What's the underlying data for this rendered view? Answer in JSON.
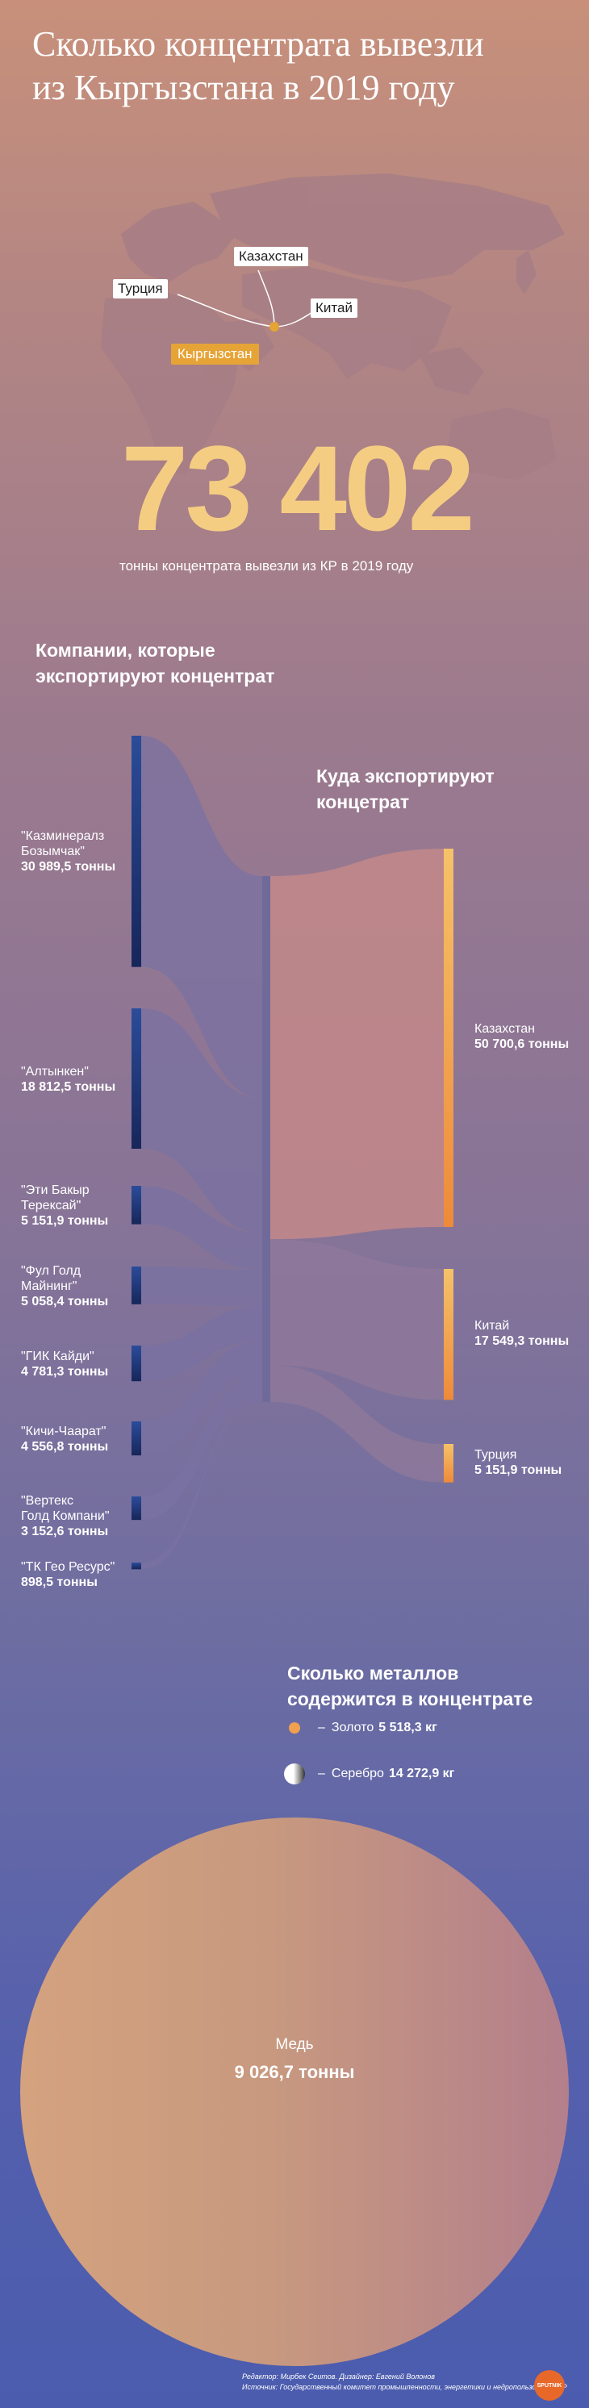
{
  "title_line1": "Сколько концентрата вывезли",
  "title_line2": "из Кыргызстана в 2019 году",
  "map": {
    "labels": {
      "kazakhstan": "Казахстан",
      "turkey": "Турция",
      "china": "Китай",
      "kyrgyzstan": "Кыргызстан"
    }
  },
  "total": {
    "value": "73 402",
    "caption": "тонны концентрата вывезли из КР в 2019 году"
  },
  "companies_heading": {
    "line1": "Компании, которые",
    "line2": "экспортируют концентрат"
  },
  "destinations_heading": {
    "line1": "Куда экспортируют",
    "line2": "концетрат"
  },
  "chart_data": {
    "type": "sankey",
    "sources": [
      {
        "name1": "\"Казминералз",
        "name2": "Бозымчак\"",
        "value_label": "30 989,5 тонны",
        "value": 30989.5
      },
      {
        "name1": "\"Алтынкен\"",
        "name2": "",
        "value_label": "18 812,5 тонны",
        "value": 18812.5
      },
      {
        "name1": "\"Эти Бакыр",
        "name2": "Терексай\"",
        "value_label": "5 151,9 тонны",
        "value": 5151.9
      },
      {
        "name1": "\"Фул Голд",
        "name2": "Майнинг\"",
        "value_label": "5 058,4 тонны",
        "value": 5058.4
      },
      {
        "name1": "\"ГИК Кайди\"",
        "name2": "",
        "value_label": "4 781,3 тонны",
        "value": 4781.3
      },
      {
        "name1": "\"Кичи-Чаарат\"",
        "name2": "",
        "value_label": "4 556,8 тонны",
        "value": 4556.8
      },
      {
        "name1": "\"Вертекс",
        "name2": "Голд Компани\"",
        "value_label": "3 152,6 тонны",
        "value": 3152.6
      },
      {
        "name1": "\"ТК Гео Ресурс\"",
        "name2": "",
        "value_label": "898,5 тонны",
        "value": 898.5
      }
    ],
    "targets": [
      {
        "name": "Казахстан",
        "value_label": "50 700,6 тонны",
        "value": 50700.6
      },
      {
        "name": "Китай",
        "value_label": "17 549,3 тонны",
        "value": 17549.3
      },
      {
        "name": "Турция",
        "value_label": "5 151,9 тонны",
        "value": 5151.9
      }
    ]
  },
  "metals": {
    "heading_line1": "Сколько металлов",
    "heading_line2": "содержится в концентрате",
    "gold_label": "Золото",
    "gold_value": "5 518,3 кг",
    "silver_label": "Серебро",
    "silver_value": "14 272,9 кг",
    "copper_label": "Медь",
    "copper_value": "9 026,7 тонны",
    "dash": "–"
  },
  "colors": {
    "gold": "#e6a437",
    "bignum": "#f5cd82",
    "bar_blue": "#1f3370",
    "bar_orange": "#f0a04e"
  },
  "credits": {
    "line1": "Редактор: Мирбек Сеитов. Дизайнер: Евгений Волонов",
    "line2": "Источник: Государственный комитет промышленности, энергетики и недропользования КР"
  },
  "logo_text": "SPUTNIK"
}
